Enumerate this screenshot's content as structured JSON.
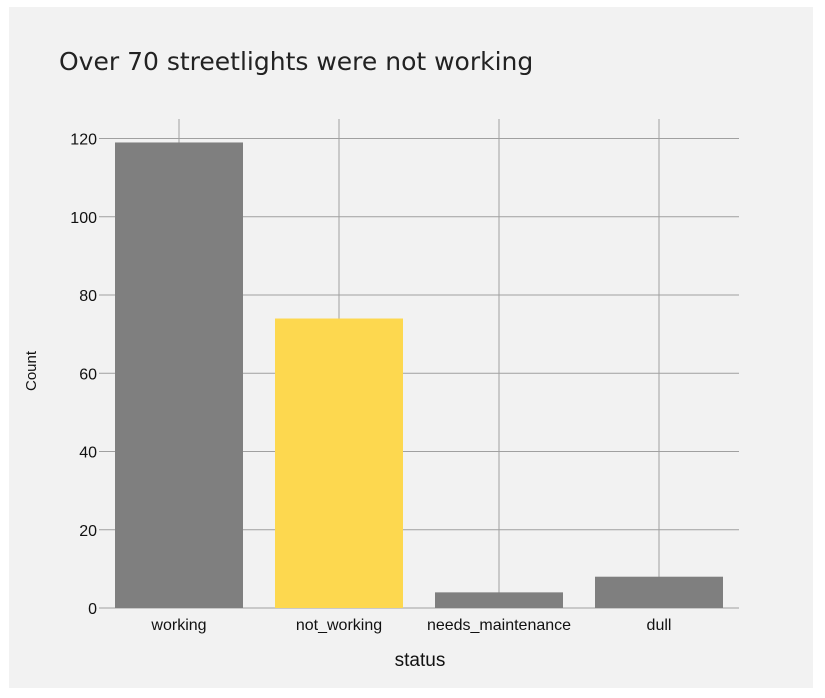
{
  "chart_data": {
    "type": "bar",
    "title": "Over 70 streetlights were not working",
    "xlabel": "status",
    "ylabel": "Count",
    "categories": [
      "working",
      "not_working",
      "needs_maintenance",
      "dull"
    ],
    "values": [
      119,
      74,
      4,
      8
    ],
    "highlight_index": 1,
    "colors": {
      "bar": "#7f7f7f",
      "highlight": "#fdd84f",
      "background": "#f2f2f2",
      "grid": "#a0a0a0"
    },
    "ylim": [
      0,
      125
    ],
    "yticks": [
      0,
      20,
      40,
      60,
      80,
      100,
      120
    ],
    "grid": true,
    "legend": "none"
  }
}
